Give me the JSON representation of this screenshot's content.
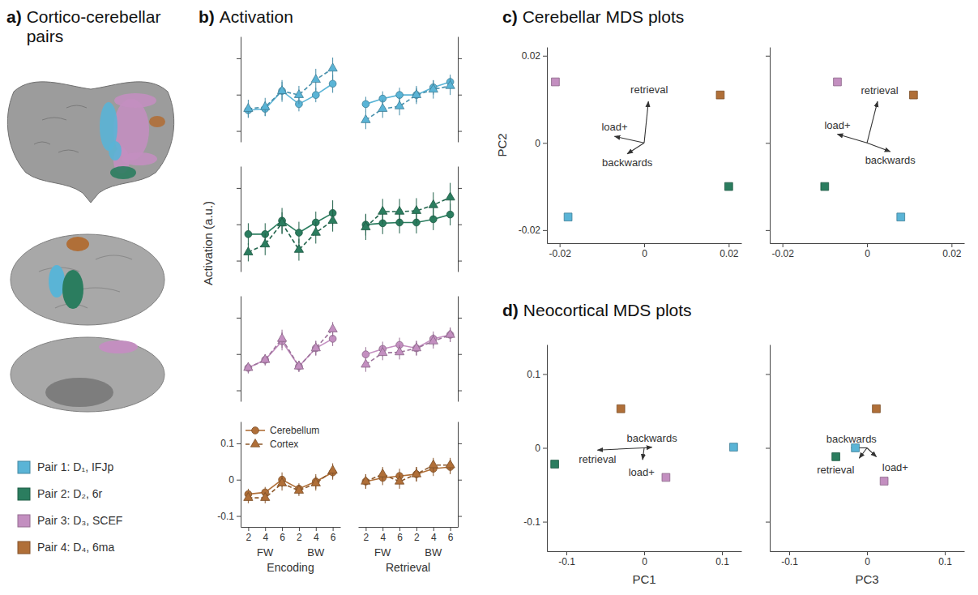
{
  "panels": [
    {
      "letter": "a)",
      "title": "Cortico-cerebellar pairs"
    },
    {
      "letter": "b)",
      "title": "Activation"
    },
    {
      "letter": "c)",
      "title": "Cerebellar MDS plots"
    },
    {
      "letter": "d)",
      "title": "Neocortical MDS plots"
    }
  ],
  "panel_a": {
    "pairs": [
      {
        "label": "Pair 1: D₁, IFJp",
        "color": "#5ab4d6"
      },
      {
        "label": "Pair 2: D₂, 6r",
        "color": "#2b7d5f"
      },
      {
        "label": "Pair 3: D₃, SCEF",
        "color": "#c38fc0"
      },
      {
        "label": "Pair 4: D₄, 6ma",
        "color": "#b06f38"
      }
    ]
  },
  "activation_ylabel": "Activation (a.u.)",
  "chart_data": [
    {
      "type": "line",
      "ylim": [
        -0.13,
        0.16
      ],
      "yticks": [
        -0.1,
        0,
        0.1
      ],
      "tick_labels": false,
      "categories": [
        "2",
        "4",
        "6",
        "2",
        "4",
        "6"
      ],
      "series": [
        {
          "color": "#5ab4d6",
          "marker": "circle",
          "line_style": "solid",
          "values": [
            -0.043,
            -0.039,
            0.01,
            -0.026,
            -0.001,
            0.03
          ],
          "errors": [
            0.02,
            0.02,
            0.025,
            0.02,
            0.02,
            0.025
          ]
        },
        {
          "color": "#5ab4d6",
          "marker": "triangle",
          "line_style": "dashed",
          "values": [
            -0.039,
            -0.034,
            0.01,
            -0.001,
            0.041,
            0.072
          ],
          "errors": [
            0.025,
            0.025,
            0.03,
            0.025,
            0.03,
            0.03
          ]
        }
      ]
    },
    {
      "type": "line",
      "ylim": [
        -0.13,
        0.16
      ],
      "yticks": [
        -0.1,
        0,
        0.1
      ],
      "tick_labels": false,
      "categories": [
        "2",
        "4",
        "6",
        "2",
        "4",
        "6"
      ],
      "series": [
        {
          "color": "#5ab4d6",
          "marker": "circle",
          "line_style": "solid",
          "values": [
            -0.026,
            -0.011,
            -0.001,
            -0.001,
            0.02,
            0.035
          ],
          "errors": [
            0.02,
            0.02,
            0.02,
            0.02,
            0.02,
            0.02
          ]
        },
        {
          "color": "#5ab4d6",
          "marker": "triangle",
          "line_style": "dashed",
          "values": [
            -0.07,
            -0.039,
            -0.032,
            -0.001,
            0.014,
            0.024
          ],
          "errors": [
            0.025,
            0.025,
            0.025,
            0.025,
            0.025,
            0.025
          ]
        }
      ]
    },
    {
      "type": "line",
      "ylim": [
        -0.13,
        0.16
      ],
      "yticks": [
        -0.1,
        0,
        0.1
      ],
      "tick_labels": false,
      "categories": [
        "2",
        "4",
        "6",
        "2",
        "4",
        "6"
      ],
      "series": [
        {
          "color": "#2b7d5f",
          "marker": "circle",
          "line_style": "solid",
          "values": [
            -0.027,
            -0.027,
            0.01,
            -0.023,
            0.005,
            0.031
          ],
          "errors": [
            0.03,
            0.03,
            0.035,
            0.03,
            0.03,
            0.035
          ]
        },
        {
          "color": "#2b7d5f",
          "marker": "triangle",
          "line_style": "dashed",
          "values": [
            -0.077,
            -0.055,
            0.003,
            -0.07,
            -0.023,
            0.01
          ],
          "errors": [
            0.025,
            0.03,
            0.03,
            0.03,
            0.03,
            0.03
          ]
        }
      ]
    },
    {
      "type": "line",
      "ylim": [
        -0.13,
        0.16
      ],
      "yticks": [
        -0.1,
        0,
        0.1
      ],
      "tick_labels": false,
      "categories": [
        "2",
        "4",
        "6",
        "2",
        "4",
        "6"
      ],
      "series": [
        {
          "color": "#2b7d5f",
          "marker": "circle",
          "line_style": "solid",
          "values": [
            -0.001,
            0.003,
            0.005,
            0.005,
            0.014,
            0.027
          ],
          "errors": [
            0.03,
            0.03,
            0.03,
            0.03,
            0.03,
            0.03
          ]
        },
        {
          "color": "#2b7d5f",
          "marker": "triangle",
          "line_style": "dashed",
          "values": [
            -0.008,
            0.035,
            0.035,
            0.037,
            0.053,
            0.074
          ],
          "errors": [
            0.035,
            0.035,
            0.035,
            0.035,
            0.035,
            0.04
          ]
        }
      ]
    },
    {
      "type": "line",
      "ylim": [
        -0.13,
        0.16
      ],
      "yticks": [
        -0.1,
        0,
        0.1
      ],
      "tick_labels": false,
      "categories": [
        "2",
        "4",
        "6",
        "2",
        "4",
        "6"
      ],
      "series": [
        {
          "color": "#c38fc0",
          "marker": "circle",
          "line_style": "solid",
          "values": [
            -0.038,
            -0.016,
            0.035,
            -0.034,
            0.016,
            0.042
          ],
          "errors": [
            0.015,
            0.015,
            0.025,
            0.015,
            0.02,
            0.02
          ]
        },
        {
          "color": "#c38fc0",
          "marker": "triangle",
          "line_style": "dashed",
          "values": [
            -0.038,
            -0.016,
            0.042,
            -0.034,
            0.016,
            0.068
          ],
          "errors": [
            0.015,
            0.015,
            0.025,
            0.015,
            0.02,
            0.02
          ]
        }
      ]
    },
    {
      "type": "line",
      "ylim": [
        -0.13,
        0.16
      ],
      "yticks": [
        -0.1,
        0,
        0.1
      ],
      "tick_labels": false,
      "categories": [
        "2",
        "4",
        "6",
        "2",
        "4",
        "6"
      ],
      "series": [
        {
          "color": "#c38fc0",
          "marker": "circle",
          "line_style": "solid",
          "values": [
            -0.001,
            0.014,
            0.025,
            0.016,
            0.042,
            0.053
          ],
          "errors": [
            0.02,
            0.02,
            0.02,
            0.02,
            0.02,
            0.02
          ]
        },
        {
          "color": "#c38fc0",
          "marker": "triangle",
          "line_style": "dashed",
          "values": [
            -0.029,
            0.003,
            0.005,
            0.016,
            0.035,
            0.053
          ],
          "errors": [
            0.02,
            0.02,
            0.02,
            0.02,
            0.02,
            0.02
          ]
        }
      ]
    },
    {
      "type": "line",
      "ylim": [
        -0.13,
        0.16
      ],
      "yticks": [
        -0.1,
        0,
        0.1
      ],
      "legend": "upper left",
      "categories": [
        "2",
        "4",
        "6",
        "2",
        "4",
        "6"
      ],
      "groups": [
        "FW",
        "BW"
      ],
      "xlabel": "Encoding",
      "series": [
        {
          "name": "Cerebellum",
          "color": "#b06f38",
          "marker": "circle",
          "line_style": "solid",
          "values": [
            -0.04,
            -0.035,
            0.0,
            -0.025,
            -0.005,
            0.02
          ],
          "errors": [
            0.015,
            0.015,
            0.02,
            0.015,
            0.02,
            0.02
          ]
        },
        {
          "name": "Cortex",
          "color": "#b06f38",
          "marker": "triangle",
          "line_style": "dashed",
          "values": [
            -0.05,
            -0.05,
            -0.01,
            -0.03,
            -0.01,
            0.025
          ],
          "errors": [
            0.015,
            0.015,
            0.02,
            0.015,
            0.02,
            0.02
          ]
        }
      ]
    },
    {
      "type": "line",
      "ylim": [
        -0.13,
        0.16
      ],
      "yticks": [
        -0.1,
        0,
        0.1
      ],
      "tick_labels": "x",
      "categories": [
        "2",
        "4",
        "6",
        "2",
        "4",
        "6"
      ],
      "groups": [
        "FW",
        "BW"
      ],
      "xlabel": "Retrieval",
      "series": [
        {
          "color": "#b06f38",
          "marker": "circle",
          "line_style": "solid",
          "values": [
            -0.005,
            0.005,
            0.01,
            0.015,
            0.03,
            0.035
          ],
          "errors": [
            0.02,
            0.02,
            0.02,
            0.02,
            0.02,
            0.02
          ]
        },
        {
          "color": "#b06f38",
          "marker": "triangle",
          "line_style": "dashed",
          "values": [
            -0.005,
            0.015,
            -0.005,
            0.015,
            0.04,
            0.04
          ],
          "errors": [
            0.02,
            0.02,
            0.02,
            0.02,
            0.02,
            0.02
          ]
        }
      ]
    },
    {
      "type": "scatter",
      "xlim": [
        -0.023,
        0.023
      ],
      "xticks": [
        -0.02,
        0,
        0.02
      ],
      "ylim": [
        -0.023,
        0.022
      ],
      "yticks": [
        -0.02,
        0,
        0.02
      ],
      "ylabel": "PC2",
      "series": [
        {
          "marker": "square",
          "x": [
            -0.018,
            0.02,
            -0.021,
            0.018
          ],
          "values": [
            -0.017,
            -0.01,
            0.014,
            0.011
          ],
          "colors": [
            "#5ab4d6",
            "#2b7d5f",
            "#c38fc0",
            "#b06f38"
          ]
        }
      ],
      "vectors": [
        {
          "label": "retrieval",
          "x": 0.001,
          "y": 0.0095
        },
        {
          "label": "load+",
          "x": -0.007,
          "y": 0.0015
        },
        {
          "label": "backwards",
          "x": -0.004,
          "y": -0.0025
        }
      ]
    },
    {
      "type": "scatter",
      "xlim": [
        -0.023,
        0.023
      ],
      "xticks": [
        -0.02,
        0,
        0.02
      ],
      "ylim": [
        -0.023,
        0.022
      ],
      "yticks": [
        -0.02,
        0,
        0.02
      ],
      "tick_labels": "x",
      "series": [
        {
          "marker": "square",
          "x": [
            0.008,
            -0.01,
            -0.007,
            0.011
          ],
          "values": [
            -0.017,
            -0.01,
            0.014,
            0.011
          ],
          "colors": [
            "#5ab4d6",
            "#2b7d5f",
            "#c38fc0",
            "#b06f38"
          ]
        }
      ],
      "vectors": [
        {
          "label": "retrieval",
          "x": 0.0025,
          "y": 0.0095
        },
        {
          "label": "load+",
          "x": -0.007,
          "y": 0.002
        },
        {
          "label": "backwards",
          "x": 0.0055,
          "y": -0.002
        }
      ]
    },
    {
      "type": "scatter",
      "xlim": [
        -0.125,
        0.125
      ],
      "xticks": [
        -0.1,
        0,
        0.1
      ],
      "ylim": [
        -0.14,
        0.14
      ],
      "yticks": [
        -0.1,
        0,
        0.1
      ],
      "xlabel": "PC1",
      "series": [
        {
          "marker": "square",
          "x": [
            0.115,
            -0.115,
            0.028,
            -0.03
          ],
          "values": [
            0.001,
            -0.022,
            -0.04,
            0.053
          ],
          "colors": [
            "#5ab4d6",
            "#2b7d5f",
            "#c38fc0",
            "#b06f38"
          ]
        }
      ],
      "vectors": [
        {
          "label": "retrieval",
          "x": -0.06,
          "y": -0.003
        },
        {
          "label": "backwards",
          "x": 0.01,
          "y": 0.001
        },
        {
          "label": "load+",
          "x": -0.002,
          "y": -0.016
        }
      ]
    },
    {
      "type": "scatter",
      "xlim": [
        -0.125,
        0.125
      ],
      "xticks": [
        -0.1,
        0,
        0.1
      ],
      "ylim": [
        -0.14,
        0.14
      ],
      "yticks": [
        -0.1,
        0,
        0.1
      ],
      "xlabel": "PC3",
      "tick_labels": "x",
      "series": [
        {
          "marker": "square",
          "x": [
            -0.015,
            -0.04,
            0.022,
            0.012
          ],
          "values": [
            0.0,
            -0.012,
            -0.045,
            0.053
          ],
          "colors": [
            "#5ab4d6",
            "#2b7d5f",
            "#c38fc0",
            "#b06f38"
          ]
        }
      ],
      "vectors": [
        {
          "label": "backwards",
          "x": -0.02,
          "y": 0.0
        },
        {
          "label": "load+",
          "x": 0.012,
          "y": -0.012
        },
        {
          "label": "retrieval",
          "x": -0.01,
          "y": -0.014
        }
      ]
    }
  ]
}
